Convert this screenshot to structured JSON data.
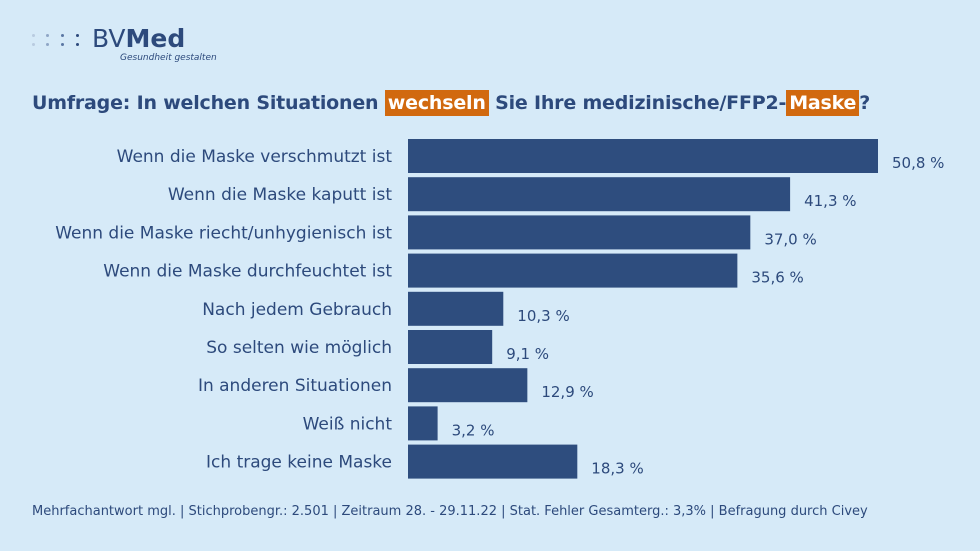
{
  "logo": {
    "brand_prefix": "BV",
    "brand_suffix": "Med",
    "tagline": "Gesundheit gestalten"
  },
  "title": {
    "part1": "Umfrage: In welchen Situationen ",
    "highlight1": "wechseln",
    "part2": " Sie Ihre medizinische/FFP2-",
    "highlight2": "Maske",
    "part3": "?"
  },
  "chart_data": {
    "type": "bar",
    "orientation": "horizontal",
    "categories": [
      "Wenn die Maske verschmutzt ist",
      "Wenn die Maske kaputt ist",
      "Wenn die Maske riecht/unhygienisch ist",
      "Wenn die Maske durchfeuchtet ist",
      "Nach jedem Gebrauch",
      "So selten wie möglich",
      "In anderen Situationen",
      "Weiß nicht",
      "Ich trage keine Maske"
    ],
    "values": [
      50.8,
      41.3,
      37.0,
      35.6,
      10.3,
      9.1,
      12.9,
      3.2,
      18.3
    ],
    "value_labels": [
      "50,8 %",
      "41,3 %",
      "37,0 %",
      "35,6 %",
      "10,3 %",
      "9,1 %",
      "12,9 %",
      "3,2 %",
      "18,3 %"
    ],
    "unit": "%",
    "xlim": [
      0,
      50.8
    ],
    "bar_color": "#2e4d7e",
    "label_color": "#2d4a7c"
  },
  "colors": {
    "background": "#d6eaf8",
    "highlight": "#d1690f",
    "text": "#2d4a7c"
  },
  "footnote": "Mehrfachantwort mgl. | Stichprobengr.: 2.501 | Zeitraum 28. - 29.11.22 | Stat. Fehler Gesamterg.: 3,3% | Befragung durch Civey"
}
